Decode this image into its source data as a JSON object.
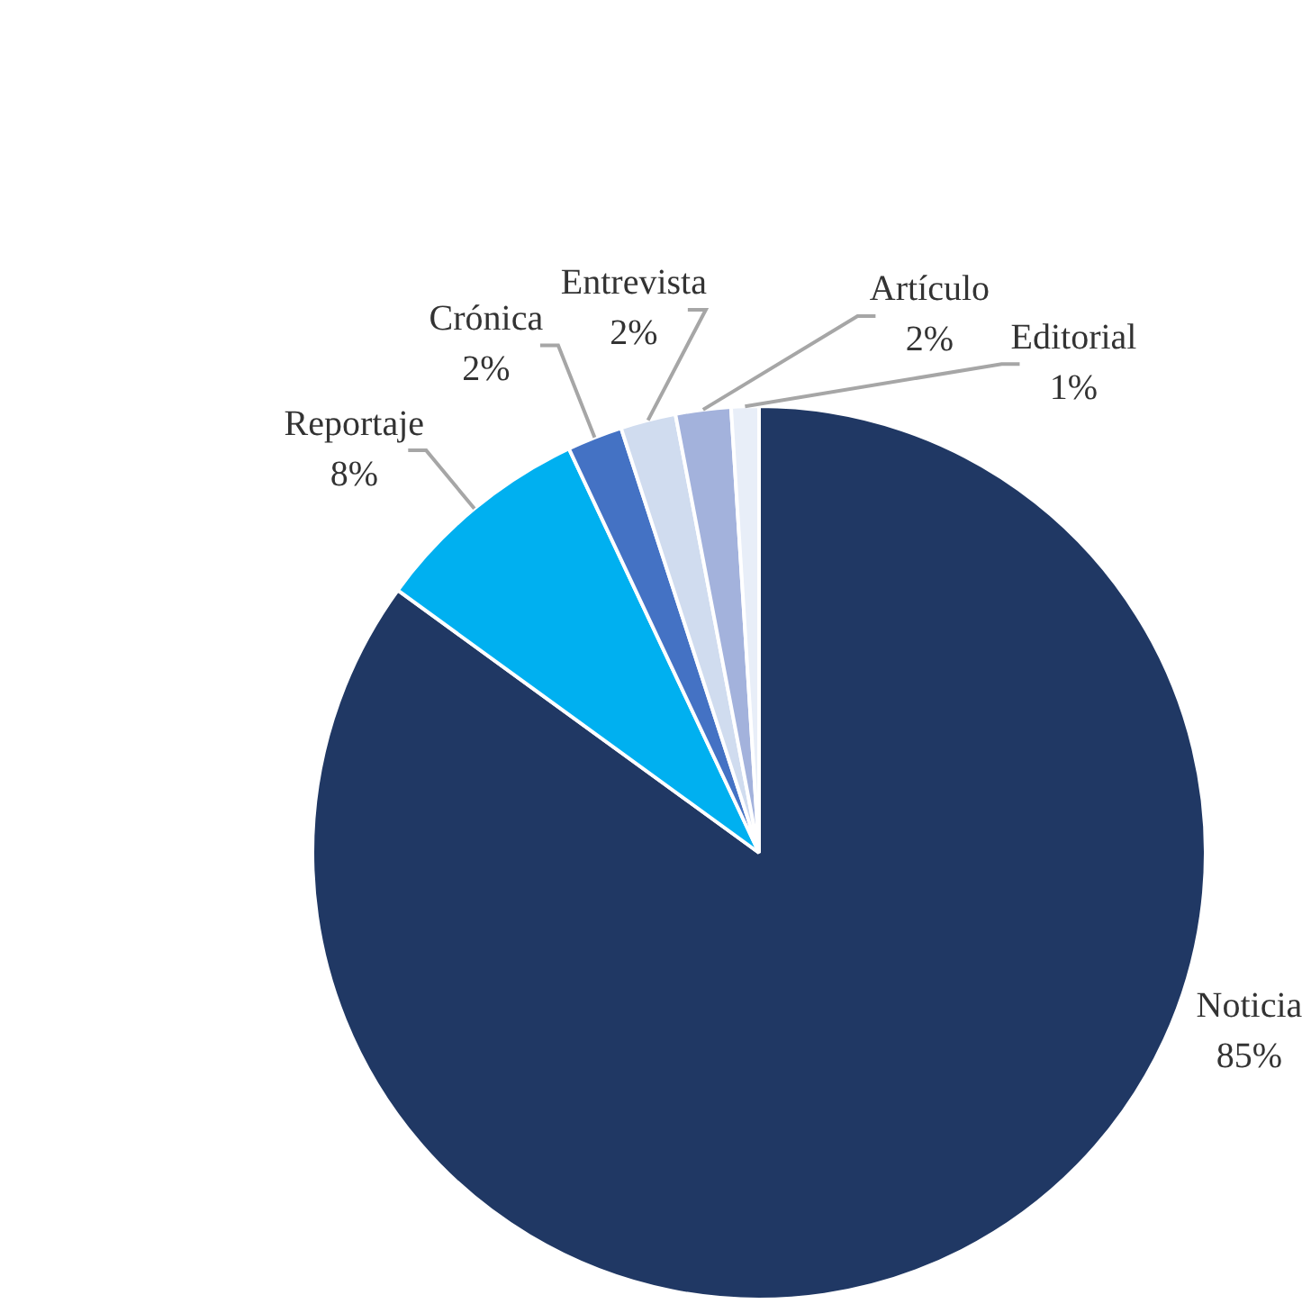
{
  "chart_data": {
    "type": "pie",
    "categories": [
      "Noticia",
      "Reportaje",
      "Crónica",
      "Entrevista",
      "Artículo",
      "Editorial"
    ],
    "values": [
      85,
      8,
      2,
      2,
      2,
      1
    ],
    "colors": [
      "#203864",
      "#00b0f0",
      "#4472c4",
      "#d0dcef",
      "#a3b2dc",
      "#e8eef8"
    ],
    "value_labels": [
      "85%",
      "8%",
      "2%",
      "2%",
      "2%",
      "1%"
    ],
    "legend": false
  }
}
